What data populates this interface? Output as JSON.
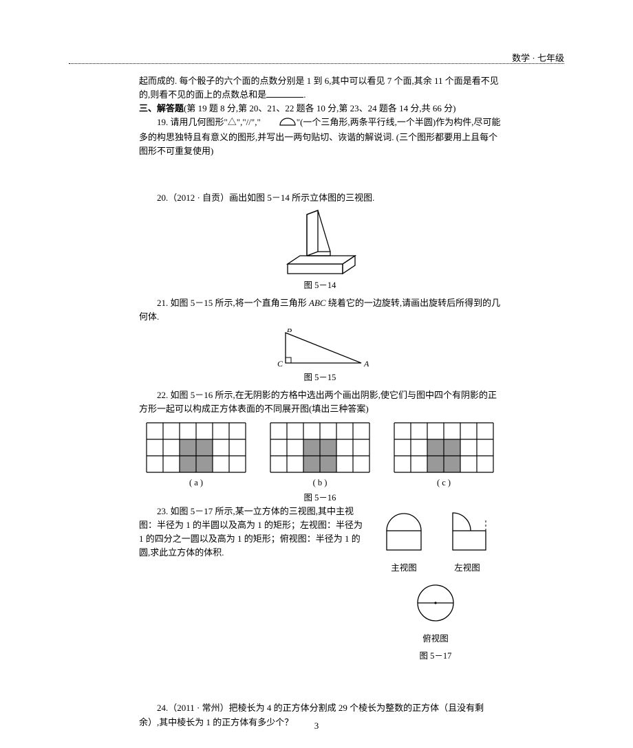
{
  "header": {
    "subject": "数学 · 七年级"
  },
  "intro": {
    "line1": "起而成的. 每个骰子的六个面的点数分别是 1 到 6,其中可以看见 7 个面,其余 11 个面是看不见的,则看不见的面上的点数总和是",
    "period": "."
  },
  "section3": {
    "title": "三、解答题",
    "scoring": "(第 19 题 8 分,第 20、21、22 题各 10 分,第 23、24 题各 14 分,共 66 分)"
  },
  "q19": {
    "prefix": "19. 请用几何图形\"△\",\"//\",\"",
    "suffix": "\"(一个三角形,两条平行线,一个半圆)作为构件,尽可能多的构思独特且有意义的图形,并写出一两句贴切、诙谐的解说词. (三个图形都要用上且每个图形不可重复使用)"
  },
  "q20": {
    "text": "20.（2012 · 自贡）画出如图 5－14 所示立体图的三视图.",
    "fig_label": "图 5－14"
  },
  "q21": {
    "text_a": "21. 如图 5－15 所示,将一个直角三角形 ",
    "text_b": " 绕着它的一边旋转,请画出旋转后所得到的几何体.",
    "abc": "ABC",
    "labels": {
      "B": "B",
      "C": "C",
      "A": "A"
    },
    "fig_label": "图 5－15"
  },
  "q22": {
    "text": "22. 如图 5－16 所示,在无阴影的方格中选出两个画出阴影,使它们与图中四个有阴影的正方形一起可以构成正方体表面的不同展开图(填出三种答案)",
    "sub": {
      "a": "( a )",
      "b": "( b )",
      "c": "( c )"
    },
    "fig_label": "图 5－16",
    "grid": {
      "rows": 3,
      "cols": 6,
      "shaded": [
        [
          1,
          2
        ],
        [
          1,
          3
        ],
        [
          2,
          2
        ],
        [
          2,
          3
        ]
      ]
    }
  },
  "q23": {
    "text": "23. 如图 5－17 所示,某一立方体的三视图,其中主视图：半径为 1 的半圆以及高为 1 的矩形；左视图：半径为 1 的四分之一圆以及高为 1 的矩形；俯视图：半径为 1 的圆,求此立方体的体积.",
    "labels": {
      "front": "主视图",
      "left": "左视图",
      "top": "俯视图"
    },
    "fig_label": "图 5－17"
  },
  "q24": {
    "text": "24.（2011 · 常州）把棱长为 4 的正方体分割成 29 个棱长为整数的正方体（且没有剩余）,其中棱长为 1 的正方体有多少个？"
  },
  "page_number": "3",
  "colors": {
    "text": "#000000",
    "bg": "#ffffff",
    "grid_fill": "#999999",
    "grid_stroke": "#000000"
  }
}
